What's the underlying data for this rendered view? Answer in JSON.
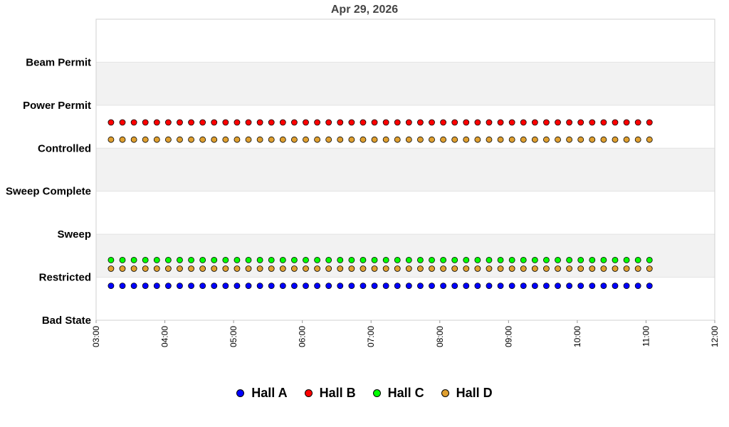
{
  "chart_data": {
    "type": "scatter",
    "title": "Apr 29, 2026",
    "categories": [
      "Bad State",
      "Restricted",
      "Sweep",
      "Sweep Complete",
      "Controlled",
      "Power Permit",
      "Beam Permit"
    ],
    "x_ticks": [
      "03:00",
      "04:00",
      "05:00",
      "06:00",
      "07:00",
      "08:00",
      "09:00",
      "10:00",
      "11:00",
      "12:00"
    ],
    "xlim": [
      "03:00",
      "12:00"
    ],
    "ylim": [
      0,
      7
    ],
    "x_start": "03:13",
    "x_end": "11:07",
    "x_step_minutes": 10,
    "banded_background": true,
    "legend_position": "bottom",
    "series": [
      {
        "name": "Hall A",
        "color": "#0000ff",
        "value": 0.8
      },
      {
        "name": "Hall B",
        "color": "#ff0000",
        "value": 4.6
      },
      {
        "name": "Hall C",
        "color": "#00ff00",
        "value": 1.4
      },
      {
        "name": "Hall D",
        "color": "#e0a030",
        "value": 1.2
      },
      {
        "name": "Hall D",
        "color": "#e0a030",
        "value": 4.2
      }
    ]
  },
  "legend": [
    {
      "label": "Hall A",
      "color": "#0000ff"
    },
    {
      "label": "Hall B",
      "color": "#ff0000"
    },
    {
      "label": "Hall C",
      "color": "#00ff00"
    },
    {
      "label": "Hall D",
      "color": "#e0a030"
    }
  ]
}
